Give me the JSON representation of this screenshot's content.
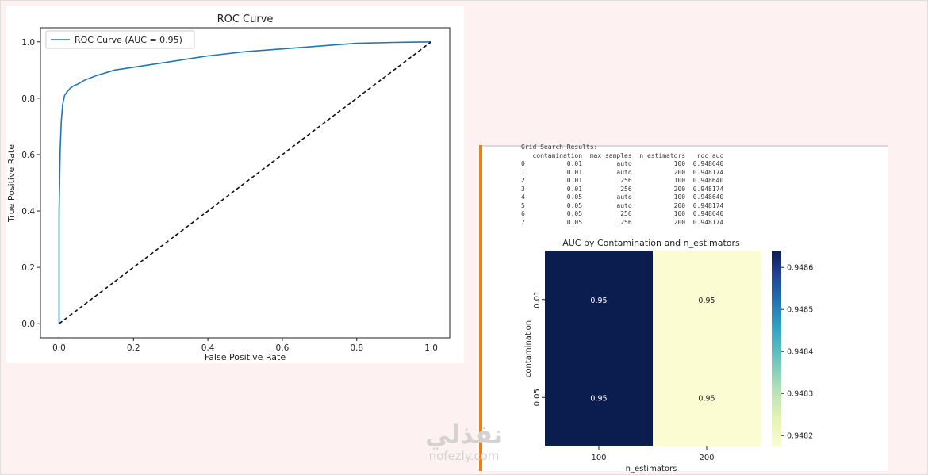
{
  "chart_data": [
    {
      "type": "line",
      "title": "ROC Curve",
      "xlabel": "False Positive Rate",
      "ylabel": "True Positive Rate",
      "xlim": [
        -0.05,
        1.05
      ],
      "ylim": [
        -0.05,
        1.05
      ],
      "xticks": [
        "0.0",
        "0.2",
        "0.4",
        "0.6",
        "0.8",
        "1.0"
      ],
      "yticks": [
        "0.0",
        "0.2",
        "0.4",
        "0.6",
        "0.8",
        "1.0"
      ],
      "grid": false,
      "legend": "top-left",
      "series": [
        {
          "name": "ROC Curve (AUC = 0.95)",
          "color": "#1f77b4",
          "x": [
            0.0,
            0.0,
            0.003,
            0.006,
            0.01,
            0.015,
            0.02,
            0.03,
            0.04,
            0.05,
            0.07,
            0.1,
            0.15,
            0.2,
            0.3,
            0.4,
            0.5,
            0.6,
            0.7,
            0.8,
            0.9,
            1.0
          ],
          "y": [
            0.0,
            0.4,
            0.62,
            0.72,
            0.78,
            0.81,
            0.82,
            0.835,
            0.845,
            0.85,
            0.865,
            0.88,
            0.9,
            0.91,
            0.93,
            0.95,
            0.965,
            0.975,
            0.985,
            0.995,
            0.998,
            1.0
          ]
        },
        {
          "type": "diagonal",
          "color": "#111111",
          "style": "dashed",
          "x": [
            0.0,
            1.0
          ],
          "y": [
            0.0,
            1.0
          ]
        }
      ]
    },
    {
      "type": "table",
      "heading": "Grid Search Results:",
      "columns": [
        "",
        "contamination",
        "max_samples",
        "n_estimators",
        "roc_auc"
      ],
      "rows": [
        [
          "0",
          "0.01",
          "auto",
          "100",
          "0.948640"
        ],
        [
          "1",
          "0.01",
          "auto",
          "200",
          "0.948174"
        ],
        [
          "2",
          "0.01",
          "256",
          "100",
          "0.948640"
        ],
        [
          "3",
          "0.01",
          "256",
          "200",
          "0.948174"
        ],
        [
          "4",
          "0.05",
          "auto",
          "100",
          "0.948640"
        ],
        [
          "5",
          "0.05",
          "auto",
          "200",
          "0.948174"
        ],
        [
          "6",
          "0.05",
          "256",
          "100",
          "0.948640"
        ],
        [
          "7",
          "0.05",
          "256",
          "200",
          "0.948174"
        ]
      ]
    },
    {
      "type": "heatmap",
      "title": "AUC by Contamination and n_estimators",
      "xlabel": "n_estimators",
      "ylabel": "contamination",
      "x_categories": [
        "100",
        "200"
      ],
      "y_categories": [
        "0.01",
        "0.05"
      ],
      "values": [
        [
          0.94864,
          0.948174
        ],
        [
          0.94864,
          0.948174
        ]
      ],
      "annotations": [
        [
          "0.95",
          "0.95"
        ],
        [
          "0.95",
          "0.95"
        ]
      ],
      "colormap": "YlGnBu",
      "colorbar_range": [
        0.948174,
        0.94864
      ],
      "colorbar_ticks": [
        "0.9482",
        "0.9483",
        "0.9484",
        "0.9485",
        "0.9486"
      ]
    }
  ],
  "watermark": {
    "arabic": "نفذلي",
    "latin": "nofezly.com"
  },
  "colors": {
    "background": "#fdf1f1",
    "accent_bar": "#ef7f0f",
    "heatmap_high": "#0b1d4f",
    "heatmap_low": "#fcfcd2"
  }
}
